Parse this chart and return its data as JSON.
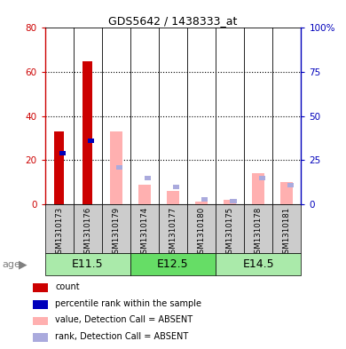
{
  "title": "GDS5642 / 1438333_at",
  "samples": [
    "GSM1310173",
    "GSM1310176",
    "GSM1310179",
    "GSM1310174",
    "GSM1310177",
    "GSM1310180",
    "GSM1310175",
    "GSM1310178",
    "GSM1310181"
  ],
  "count": [
    33,
    65,
    0,
    0,
    0,
    0,
    0,
    0,
    0
  ],
  "percentile_rank": [
    30,
    37,
    0,
    0,
    0,
    0,
    0,
    0,
    0
  ],
  "value_absent": [
    0,
    0,
    33,
    9,
    6,
    1,
    2,
    14,
    10
  ],
  "rank_absent": [
    0,
    0,
    22,
    16,
    11,
    4,
    3,
    16,
    12
  ],
  "left_ylim": [
    0,
    80
  ],
  "right_yticks": [
    0,
    25,
    50,
    75,
    100
  ],
  "right_yticklabels": [
    "0",
    "25",
    "50",
    "75",
    "100%"
  ],
  "left_yticks": [
    0,
    20,
    40,
    60,
    80
  ],
  "groups": [
    {
      "label": "E11.5",
      "indices": [
        0,
        1,
        2
      ],
      "color": "#aaeaaa"
    },
    {
      "label": "E12.5",
      "indices": [
        3,
        4,
        5
      ],
      "color": "#66dd66"
    },
    {
      "label": "E14.5",
      "indices": [
        6,
        7,
        8
      ],
      "color": "#aaeaaa"
    }
  ],
  "colors": {
    "count": "#cc0000",
    "percentile_rank": "#0000bb",
    "value_absent": "#ffb0b0",
    "rank_absent": "#aaaadd",
    "sample_bg": "#cccccc",
    "left_axis": "#cc0000",
    "right_axis": "#0000bb"
  },
  "legend_items": [
    {
      "color": "#cc0000",
      "label": "count"
    },
    {
      "color": "#0000bb",
      "label": "percentile rank within the sample"
    },
    {
      "color": "#ffb0b0",
      "label": "value, Detection Call = ABSENT"
    },
    {
      "color": "#aaaadd",
      "label": "rank, Detection Call = ABSENT"
    }
  ]
}
